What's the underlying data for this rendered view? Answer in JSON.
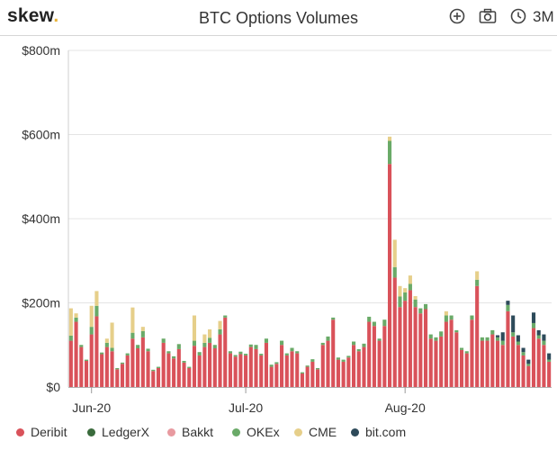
{
  "header": {
    "logo_text": "skew",
    "logo_dot": ".",
    "title": "BTC Options Volumes",
    "range_label": "3M",
    "icons": [
      "zoom-in-icon",
      "camera-icon",
      "clock-icon"
    ]
  },
  "chart_data": {
    "type": "bar",
    "stacked": true,
    "title": "BTC Options Volumes",
    "ylim": [
      0,
      800
    ],
    "y_ticks": [
      {
        "value": 0,
        "label": "$0"
      },
      {
        "value": 200,
        "label": "$200m"
      },
      {
        "value": 400,
        "label": "$400m"
      },
      {
        "value": 600,
        "label": "$600m"
      },
      {
        "value": 800,
        "label": "$800m"
      }
    ],
    "x_ticks": [
      {
        "index": 4,
        "label": "Jun-20"
      },
      {
        "index": 34,
        "label": "Jul-20"
      },
      {
        "index": 65,
        "label": "Aug-20"
      }
    ],
    "grid": "horizontal",
    "legend_position": "bottom",
    "colors": {
      "Deribit": "#d9525a",
      "LedgerX": "#3a6b3c",
      "Bakkt": "#e89aa0",
      "OKEx": "#6aaa68",
      "CME": "#e6cf8a",
      "bit.com": "#2d4a5a"
    },
    "series": [
      {
        "name": "Deribit",
        "values": [
          110,
          155,
          95,
          62,
          125,
          168,
          78,
          95,
          85,
          42,
          55,
          75,
          115,
          92,
          118,
          85,
          38,
          45,
          105,
          80,
          68,
          90,
          58,
          45,
          98,
          75,
          95,
          105,
          92,
          125,
          165,
          80,
          72,
          78,
          75,
          95,
          90,
          75,
          105,
          48,
          55,
          100,
          75,
          85,
          80,
          32,
          48,
          60,
          42,
          100,
          110,
          160,
          65,
          60,
          70,
          100,
          85,
          95,
          155,
          145,
          110,
          145,
          530,
          260,
          190,
          205,
          230,
          190,
          175,
          185,
          115,
          110,
          120,
          155,
          160,
          130,
          88,
          80,
          160,
          240,
          110,
          110,
          125,
          110,
          100,
          180,
          120,
          100,
          75,
          50,
          140,
          115,
          100,
          60
        ],
        "approx": true
      },
      {
        "name": "LedgerX",
        "values": [
          0,
          0,
          0,
          0,
          0,
          0,
          0,
          0,
          0,
          0,
          0,
          0,
          0,
          0,
          0,
          0,
          0,
          0,
          0,
          0,
          0,
          0,
          0,
          0,
          0,
          0,
          0,
          0,
          0,
          0,
          0,
          0,
          0,
          0,
          0,
          0,
          0,
          0,
          0,
          0,
          0,
          0,
          0,
          0,
          0,
          0,
          0,
          0,
          0,
          0,
          0,
          0,
          0,
          0,
          0,
          0,
          0,
          0,
          0,
          0,
          0,
          0,
          0,
          0,
          0,
          0,
          0,
          0,
          0,
          0,
          0,
          0,
          0,
          0,
          0,
          0,
          0,
          0,
          0,
          0,
          0,
          0,
          0,
          0,
          0,
          0,
          0,
          0,
          0,
          0,
          0,
          0,
          0,
          0
        ],
        "approx": true
      },
      {
        "name": "Bakkt",
        "values": [
          0,
          0,
          0,
          0,
          0,
          0,
          0,
          0,
          0,
          0,
          0,
          0,
          0,
          0,
          0,
          0,
          0,
          0,
          0,
          0,
          0,
          0,
          0,
          0,
          0,
          0,
          0,
          0,
          0,
          0,
          0,
          0,
          0,
          0,
          0,
          0,
          0,
          0,
          0,
          0,
          0,
          0,
          0,
          0,
          0,
          0,
          0,
          0,
          0,
          0,
          0,
          0,
          0,
          0,
          0,
          0,
          0,
          0,
          0,
          0,
          0,
          0,
          0,
          0,
          0,
          0,
          0,
          0,
          0,
          0,
          0,
          0,
          0,
          0,
          0,
          0,
          0,
          0,
          0,
          0,
          0,
          0,
          0,
          0,
          0,
          0,
          0,
          0,
          0,
          0,
          0,
          0,
          0,
          0
        ],
        "approx": true
      },
      {
        "name": "OKEx",
        "values": [
          12,
          10,
          5,
          3,
          18,
          25,
          4,
          10,
          8,
          3,
          3,
          5,
          14,
          8,
          15,
          6,
          3,
          3,
          10,
          5,
          5,
          12,
          4,
          3,
          12,
          8,
          10,
          12,
          8,
          12,
          5,
          5,
          4,
          6,
          4,
          6,
          10,
          4,
          10,
          5,
          4,
          10,
          5,
          8,
          5,
          3,
          3,
          6,
          3,
          5,
          10,
          5,
          5,
          5,
          4,
          8,
          5,
          8,
          12,
          10,
          5,
          15,
          55,
          25,
          25,
          20,
          15,
          18,
          12,
          12,
          10,
          8,
          12,
          15,
          10,
          5,
          5,
          5,
          10,
          15,
          8,
          8,
          10,
          8,
          10,
          15,
          10,
          8,
          8,
          5,
          12,
          8,
          10,
          5
        ],
        "approx": true
      },
      {
        "name": "CME",
        "values": [
          65,
          10,
          0,
          0,
          50,
          35,
          0,
          10,
          60,
          0,
          0,
          0,
          60,
          0,
          10,
          0,
          0,
          0,
          0,
          0,
          0,
          0,
          0,
          0,
          60,
          0,
          20,
          20,
          0,
          20,
          0,
          0,
          0,
          0,
          0,
          0,
          0,
          0,
          0,
          0,
          0,
          0,
          0,
          0,
          0,
          0,
          0,
          0,
          0,
          0,
          0,
          0,
          0,
          0,
          0,
          0,
          0,
          0,
          0,
          0,
          0,
          0,
          10,
          65,
          25,
          10,
          20,
          8,
          0,
          0,
          0,
          0,
          0,
          10,
          0,
          0,
          0,
          0,
          0,
          20,
          0,
          0,
          0,
          0,
          0,
          0,
          0,
          0,
          0,
          0,
          0,
          0,
          0,
          0
        ],
        "approx": true
      },
      {
        "name": "bit.com",
        "values": [
          0,
          0,
          0,
          0,
          0,
          0,
          0,
          0,
          0,
          0,
          0,
          0,
          0,
          0,
          0,
          0,
          0,
          0,
          0,
          0,
          0,
          0,
          0,
          0,
          0,
          0,
          0,
          0,
          0,
          0,
          0,
          0,
          0,
          0,
          0,
          0,
          0,
          0,
          0,
          0,
          0,
          0,
          0,
          0,
          0,
          0,
          0,
          0,
          0,
          0,
          0,
          0,
          0,
          0,
          0,
          0,
          0,
          0,
          0,
          0,
          0,
          0,
          0,
          0,
          0,
          0,
          0,
          0,
          0,
          0,
          0,
          0,
          0,
          0,
          0,
          0,
          0,
          0,
          0,
          0,
          0,
          0,
          0,
          5,
          20,
          10,
          40,
          15,
          10,
          10,
          25,
          12,
          15,
          15
        ],
        "approx": true
      }
    ]
  }
}
